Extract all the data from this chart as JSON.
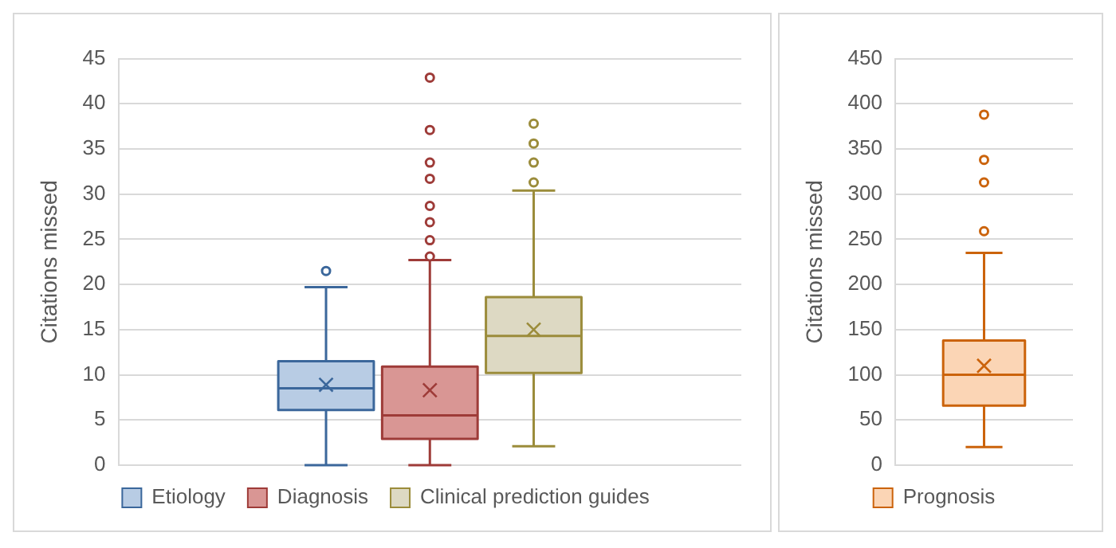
{
  "chart_data": [
    {
      "type": "box",
      "categories": [
        null
      ],
      "ylabel": "Citations missed",
      "ylim": [
        0,
        45
      ],
      "yticks": [
        0,
        5,
        10,
        15,
        20,
        25,
        30,
        35,
        40,
        45
      ],
      "grid": "y",
      "legend": "bottom",
      "series": [
        {
          "name": "Etiology",
          "color": "#b8cce4",
          "boxes": [
            {
              "low": 0,
              "q1": 6.1,
              "median": 8.5,
              "q3": 11.5,
              "high": 19.7,
              "mean": 8.9,
              "outliers": [
                21.5
              ]
            }
          ]
        },
        {
          "name": "Diagnosis",
          "color": "#d99694",
          "boxes": [
            {
              "low": 0,
              "q1": 2.9,
              "median": 5.5,
              "q3": 10.9,
              "high": 22.7,
              "mean": 8.3,
              "outliers": [
                42.9,
                37.1,
                33.5,
                31.7,
                28.7,
                26.9,
                24.9,
                23.1
              ]
            }
          ]
        },
        {
          "name": "Clinical prediction guides",
          "color": "#ddd9c3",
          "boxes": [
            {
              "low": 2.1,
              "q1": 10.2,
              "median": 14.3,
              "q3": 18.6,
              "high": 30.4,
              "mean": 15.0,
              "outliers": [
                37.8,
                35.6,
                33.5,
                31.3
              ]
            }
          ]
        }
      ]
    },
    {
      "type": "box",
      "categories": [
        null
      ],
      "ylabel": "Citations missed",
      "ylim": [
        0,
        450
      ],
      "yticks": [
        0,
        50,
        100,
        150,
        200,
        250,
        300,
        350,
        400,
        450
      ],
      "grid": "y",
      "legend": "bottom",
      "series": [
        {
          "name": "Prognosis",
          "color": "#fbd5b5",
          "boxes": [
            {
              "low": 20,
              "q1": 66,
              "median": 100,
              "q3": 138,
              "high": 235,
              "mean": 110,
              "outliers": [
                388,
                338,
                313,
                259
              ]
            }
          ]
        }
      ]
    }
  ]
}
